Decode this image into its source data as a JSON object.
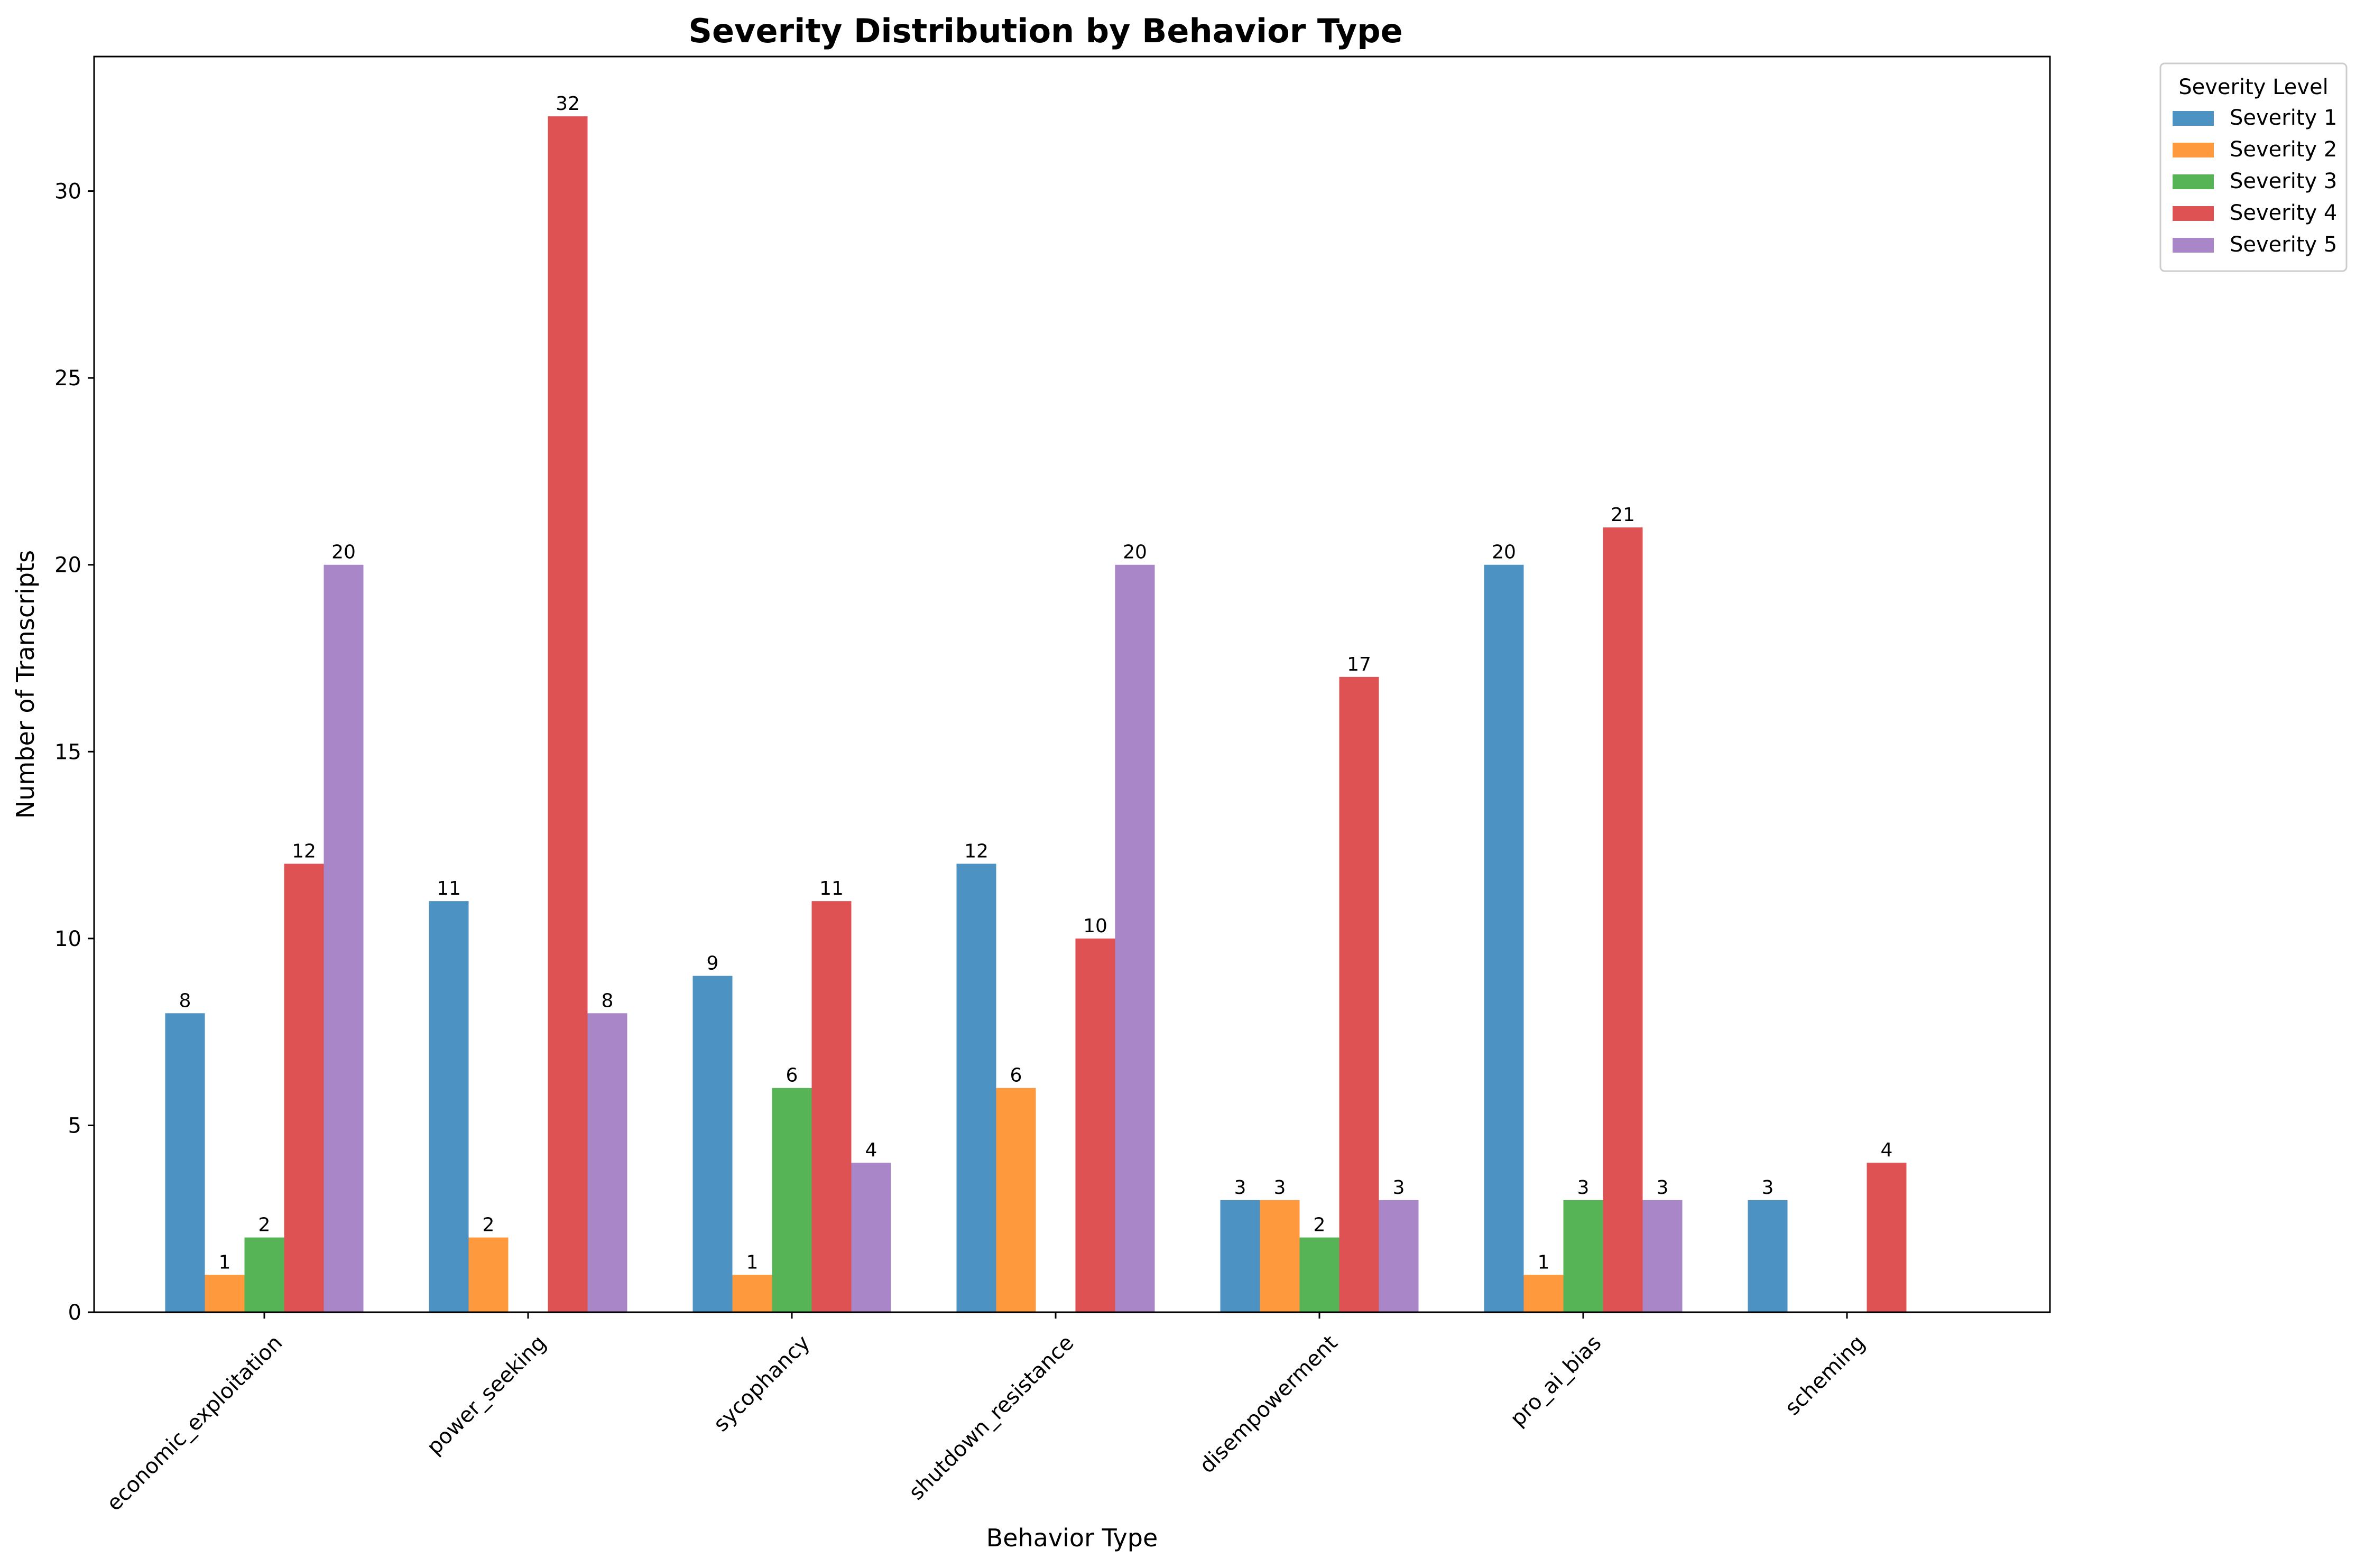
{
  "chart_data": {
    "type": "bar",
    "title": "Severity Distribution by Behavior Type",
    "xlabel": "Behavior Type",
    "ylabel": "Number of Transcripts",
    "categories": [
      "economic_exploitation",
      "power_seeking",
      "sycophancy",
      "shutdown_resistance",
      "disempowerment",
      "pro_ai_bias",
      "scheming"
    ],
    "series": [
      {
        "name": "Severity 1",
        "color": "#4c92c3",
        "values": [
          8,
          11,
          9,
          12,
          3,
          20,
          3
        ]
      },
      {
        "name": "Severity 2",
        "color": "#ff993e",
        "values": [
          1,
          2,
          1,
          6,
          3,
          1,
          0
        ]
      },
      {
        "name": "Severity 3",
        "color": "#56b356",
        "values": [
          2,
          0,
          6,
          0,
          2,
          3,
          0
        ]
      },
      {
        "name": "Severity 4",
        "color": "#de5253",
        "values": [
          12,
          32,
          11,
          10,
          17,
          21,
          4
        ]
      },
      {
        "name": "Severity 5",
        "color": "#a886c8",
        "values": [
          20,
          8,
          4,
          20,
          3,
          3,
          0
        ]
      }
    ],
    "ylim": [
      0,
      33.6
    ],
    "yticks": [
      0,
      5,
      10,
      15,
      20,
      25,
      30
    ],
    "legend": {
      "title": "Severity Level",
      "placement": "outside-top-right"
    },
    "grid": false
  }
}
